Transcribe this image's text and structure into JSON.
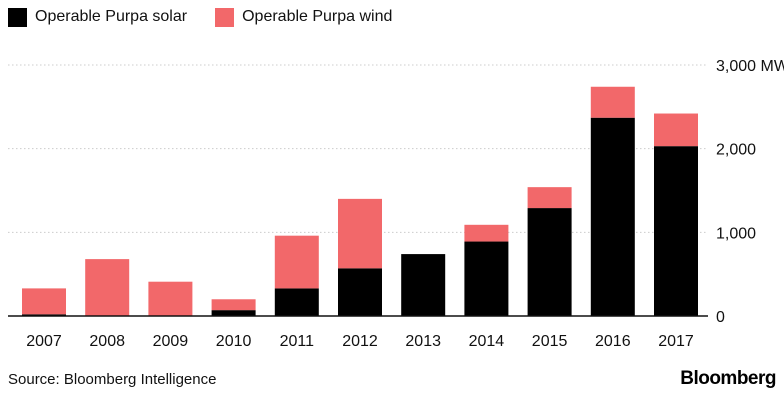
{
  "legend": {
    "solar_label": "Operable Purpa solar",
    "wind_label": "Operable Purpa wind"
  },
  "footer": {
    "source": "Source: Bloomberg Intelligence",
    "brand": "Bloomberg"
  },
  "chart_data": {
    "type": "bar",
    "stacked": true,
    "title": "",
    "xlabel": "",
    "ylabel": "",
    "unit_label": "MW",
    "categories": [
      "2007",
      "2008",
      "2009",
      "2010",
      "2011",
      "2012",
      "2013",
      "2014",
      "2015",
      "2016",
      "2017"
    ],
    "series": [
      {
        "name": "Operable Purpa solar",
        "color": "#000000",
        "values": [
          20,
          0,
          0,
          70,
          330,
          570,
          740,
          890,
          1290,
          2370,
          2030
        ]
      },
      {
        "name": "Operable Purpa wind",
        "color": "#f2686a",
        "values": [
          310,
          680,
          410,
          130,
          630,
          830,
          0,
          200,
          250,
          370,
          390
        ]
      }
    ],
    "ylim": [
      0,
      3000
    ],
    "yticks": [
      0,
      1000,
      2000,
      3000
    ],
    "ytick_labels": [
      "0",
      "1,000",
      "2,000",
      "3,000 MW"
    ],
    "grid": true,
    "legend_position": "top-left",
    "axis_position": "right"
  }
}
